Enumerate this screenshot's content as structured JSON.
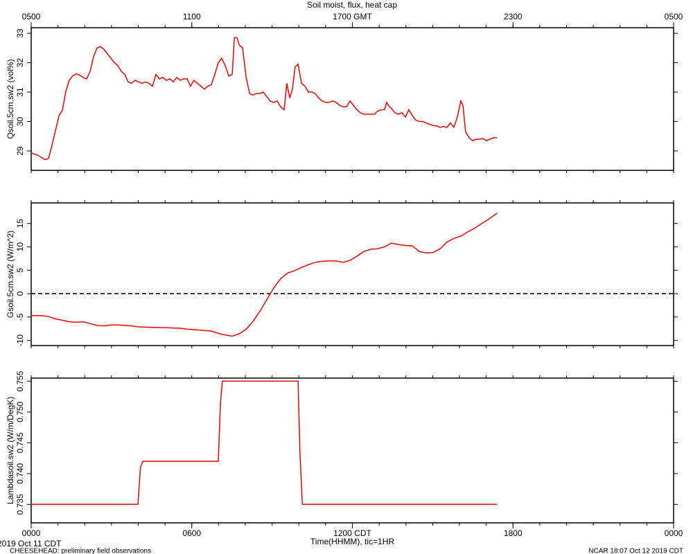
{
  "chart_data": [
    {
      "type": "line",
      "title": "Soil moist, flux, heat cap",
      "ylabel": "Qsoil.5cm.sw2 (vol%)",
      "color": "#ee0000",
      "xlim": [
        0,
        24
      ],
      "ylim": [
        28.34,
        33.19
      ],
      "yticks": [
        29,
        30,
        31,
        32,
        33
      ],
      "x2ticks": [
        {
          "value": 0,
          "label": "0500"
        },
        {
          "value": 6,
          "label": "1100"
        },
        {
          "value": 12,
          "label": "1700 GMT"
        },
        {
          "value": 18,
          "label": "2300"
        },
        {
          "value": 24,
          "label": "0500"
        }
      ],
      "xticks_minor": [
        0,
        1,
        2,
        3,
        4,
        5,
        6,
        7,
        8,
        9,
        10,
        11,
        12,
        13,
        14,
        15,
        16,
        17,
        18,
        19,
        20,
        21,
        22,
        23,
        24
      ],
      "x": [
        0,
        0.26,
        0.52,
        0.65,
        0.78,
        0.91,
        1.04,
        1.17,
        1.29,
        1.42,
        1.55,
        1.68,
        1.81,
        1.94,
        2.07,
        2.2,
        2.33,
        2.46,
        2.59,
        2.72,
        2.85,
        2.98,
        3.11,
        3.24,
        3.37,
        3.5,
        3.62,
        3.75,
        3.88,
        4.01,
        4.14,
        4.27,
        4.4,
        4.53,
        4.66,
        4.79,
        4.92,
        5.05,
        5.18,
        5.31,
        5.44,
        5.57,
        5.7,
        5.83,
        5.95,
        6.08,
        6.21,
        6.34,
        6.47,
        6.6,
        6.73,
        6.86,
        6.99,
        7.12,
        7.25,
        7.38,
        7.51,
        7.59,
        7.69,
        7.77,
        7.9,
        8.03,
        8.16,
        8.28,
        8.41,
        8.54,
        8.67,
        8.8,
        8.93,
        9.06,
        9.19,
        9.32,
        9.45,
        9.55,
        9.66,
        9.76,
        9.86,
        9.97,
        10.1,
        10.23,
        10.36,
        10.49,
        10.61,
        10.74,
        10.87,
        11,
        11.13,
        11.26,
        11.39,
        11.52,
        11.65,
        11.78,
        11.91,
        12.04,
        12.17,
        12.3,
        12.43,
        12.56,
        12.69,
        12.82,
        12.94,
        13.07,
        13.2,
        13.28,
        13.39,
        13.46,
        13.59,
        13.72,
        13.85,
        13.98,
        14.11,
        14.24,
        14.37,
        14.5,
        14.63,
        14.76,
        14.89,
        15.02,
        15.15,
        15.28,
        15.4,
        15.53,
        15.66,
        15.79,
        15.92,
        16.05,
        16.13,
        16.23,
        16.36,
        16.49,
        16.62,
        16.75,
        16.88,
        17.01,
        17.14,
        17.27,
        17.4
      ],
      "values": [
        28.93,
        28.85,
        28.7,
        28.75,
        29.2,
        29.7,
        30.2,
        30.4,
        31.0,
        31.4,
        31.55,
        31.62,
        31.58,
        31.5,
        31.45,
        31.7,
        32.2,
        32.5,
        32.55,
        32.45,
        32.3,
        32.15,
        32.0,
        31.9,
        31.7,
        31.6,
        31.35,
        31.3,
        31.4,
        31.35,
        31.3,
        31.35,
        31.3,
        31.2,
        31.6,
        31.45,
        31.5,
        31.4,
        31.45,
        31.35,
        31.5,
        31.4,
        31.45,
        31.45,
        31.2,
        31.4,
        31.3,
        31.2,
        31.1,
        31.2,
        31.25,
        31.6,
        32.0,
        32.15,
        31.9,
        31.55,
        31.6,
        32.85,
        32.85,
        32.6,
        32.5,
        31.5,
        30.95,
        30.9,
        30.95,
        30.95,
        31.0,
        30.85,
        30.7,
        30.65,
        30.7,
        30.5,
        30.4,
        31.3,
        30.8,
        31.1,
        31.85,
        31.95,
        31.3,
        31.2,
        31.0,
        31.0,
        30.95,
        30.8,
        30.7,
        30.65,
        30.65,
        30.7,
        30.65,
        30.55,
        30.5,
        30.5,
        30.7,
        30.55,
        30.4,
        30.3,
        30.25,
        30.25,
        30.25,
        30.25,
        30.35,
        30.4,
        30.4,
        30.65,
        30.5,
        30.45,
        30.3,
        30.25,
        30.3,
        30.15,
        30.4,
        30.2,
        30.05,
        30.0,
        30.0,
        29.95,
        29.9,
        29.87,
        29.85,
        29.8,
        29.83,
        29.8,
        29.95,
        29.8,
        30.15,
        30.7,
        30.55,
        29.65,
        29.45,
        29.35,
        29.4,
        29.4,
        29.42,
        29.35,
        29.4,
        29.45,
        29.45
      ]
    },
    {
      "type": "line",
      "ylabel": "Gsoil.5cm.sw2 (W/m^2)",
      "color": "#ee0000",
      "reference_line": 0,
      "xlim": [
        0,
        24
      ],
      "ylim": [
        -11.1,
        19.4
      ],
      "yticks": [
        -10,
        -5,
        0,
        5,
        10,
        15
      ],
      "x": [
        0,
        0.39,
        0.65,
        0.91,
        1.17,
        1.42,
        1.68,
        1.94,
        2.2,
        2.46,
        2.72,
        2.98,
        3.24,
        3.5,
        3.75,
        4.01,
        4.53,
        5.05,
        5.57,
        5.83,
        6.34,
        6.73,
        7.12,
        7.51,
        7.77,
        8.03,
        8.28,
        8.54,
        8.8,
        9.06,
        9.32,
        9.58,
        9.84,
        10.1,
        10.36,
        10.61,
        10.87,
        11.13,
        11.39,
        11.65,
        11.91,
        12.17,
        12.43,
        12.69,
        12.94,
        13.2,
        13.46,
        13.72,
        13.98,
        14.24,
        14.5,
        14.76,
        15.02,
        15.28,
        15.53,
        15.79,
        16.05,
        16.31,
        16.57,
        16.83,
        17.09,
        17.4
      ],
      "values": [
        -4.7,
        -4.7,
        -4.9,
        -5.4,
        -5.7,
        -6.0,
        -6.1,
        -6.0,
        -6.4,
        -6.8,
        -6.9,
        -6.7,
        -6.7,
        -6.8,
        -6.9,
        -7.1,
        -7.2,
        -7.3,
        -7.4,
        -7.6,
        -7.8,
        -8.0,
        -8.7,
        -9.1,
        -8.6,
        -7.6,
        -6.0,
        -3.8,
        -1.3,
        1.2,
        3.2,
        4.4,
        4.9,
        5.6,
        6.2,
        6.7,
        6.9,
        7.0,
        7.0,
        6.7,
        7.1,
        8.0,
        9.0,
        9.5,
        9.6,
        10.0,
        10.8,
        10.5,
        10.3,
        10.2,
        9.0,
        8.7,
        8.8,
        9.6,
        11.0,
        11.8,
        12.3,
        13.2,
        14.0,
        15.0,
        15.9,
        17.2
      ]
    },
    {
      "type": "line",
      "ylabel": "Lambdasoil.sw2 (W/m/DegK)",
      "xlabel": "Time(HHMM), tic=1HR",
      "color": "#ee0000",
      "xlim": [
        0,
        24
      ],
      "ylim": [
        0.732,
        0.7555
      ],
      "yticks": [
        0.735,
        {
          "value": 0.74,
          "label": "0.740"
        },
        0.745,
        {
          "value": 0.75,
          "label": "0.750"
        },
        0.755
      ],
      "xticks": [
        {
          "value": 0,
          "label": "0000"
        },
        {
          "value": 6,
          "label": "0600"
        },
        {
          "value": 12,
          "label": "1200 CDT"
        },
        {
          "value": 18,
          "label": "1800"
        },
        {
          "value": 24,
          "label": "0000"
        }
      ],
      "x": [
        0,
        3.99,
        4.08,
        4.17,
        6.99,
        7.07,
        7.14,
        9.97,
        10.04,
        10.13,
        17.4
      ],
      "values": [
        0.735,
        0.735,
        0.741,
        0.742,
        0.742,
        0.7513,
        0.755,
        0.755,
        0.7435,
        0.735,
        0.735
      ]
    }
  ],
  "footer": {
    "date": "2019 Oct 11 CDT",
    "project": "CHEESEHEAD: preliminary field observations",
    "stamp": "NCAR 18:07 Oct 12 2019 CDT"
  }
}
